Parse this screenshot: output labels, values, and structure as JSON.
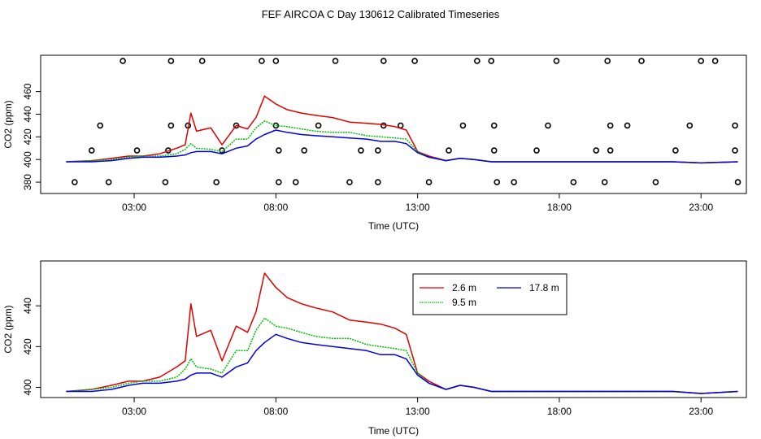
{
  "figure": {
    "title": "FEF AIRCOA C  Day 130612  Calibrated Timeseries"
  },
  "colors": {
    "s26": "#e00000",
    "s95": "#00c000",
    "s178": "#0000e0",
    "flags": "#000000"
  },
  "chart_data": [
    {
      "type": "line",
      "panel": "top",
      "xlabel": "Time (UTC)",
      "ylabel": "CO2 (ppm)",
      "xlim": [
        -0.3,
        24.6
      ],
      "ylim": [
        370,
        492
      ],
      "xticks": [
        3,
        8,
        13,
        18,
        23
      ],
      "xtick_labels": [
        "03:00",
        "08:00",
        "13:00",
        "18:00",
        "23:00"
      ],
      "yticks": [
        380,
        400,
        420,
        440,
        460
      ],
      "ytick_labels": [
        "380",
        "400",
        "420",
        "440",
        "460"
      ],
      "grid": false,
      "series": [
        {
          "name": "2.6 m",
          "color": "#e00000",
          "x": [
            0.6,
            1.5,
            2.2,
            2.8,
            3.3,
            3.9,
            4.5,
            4.8,
            5.0,
            5.2,
            5.7,
            6.1,
            6.6,
            7.0,
            7.3,
            7.6,
            8.0,
            8.4,
            8.9,
            9.4,
            10.0,
            10.6,
            11.2,
            11.7,
            12.2,
            12.6,
            13.0,
            13.4,
            14.0,
            14.5,
            15.0,
            15.6,
            16.5,
            18.0,
            20.0,
            22.0,
            23.0,
            24.3
          ],
          "y": [
            398,
            399,
            401,
            403,
            403,
            405,
            410,
            413,
            441,
            425,
            428,
            413,
            430,
            427,
            437,
            456,
            449,
            444,
            441,
            439,
            437,
            433,
            432,
            431,
            429,
            426,
            407,
            403,
            399,
            401,
            400,
            398,
            398,
            398,
            398,
            398,
            397,
            398
          ]
        },
        {
          "name": "9.5 m",
          "color": "#00c000",
          "x": [
            0.6,
            1.5,
            2.2,
            2.8,
            3.3,
            3.9,
            4.5,
            4.8,
            5.0,
            5.2,
            5.7,
            6.1,
            6.6,
            7.0,
            7.3,
            7.6,
            8.0,
            8.4,
            8.9,
            9.4,
            10.0,
            10.6,
            11.2,
            11.7,
            12.2,
            12.6,
            13.0,
            13.4,
            14.0,
            14.5,
            15.0,
            15.6,
            16.5,
            18.0,
            20.0,
            22.0,
            23.0,
            24.3
          ],
          "y": [
            398,
            399,
            400,
            402,
            403,
            403,
            405,
            409,
            414,
            410,
            409,
            407,
            418,
            418,
            428,
            434,
            430,
            429,
            427,
            425,
            424,
            424,
            421,
            420,
            419,
            418,
            407,
            402,
            399,
            401,
            400,
            398,
            398,
            398,
            398,
            398,
            397,
            398
          ]
        },
        {
          "name": "17.8 m",
          "color": "#0000e0",
          "x": [
            0.6,
            1.5,
            2.2,
            2.8,
            3.3,
            3.9,
            4.5,
            4.8,
            5.0,
            5.2,
            5.7,
            6.1,
            6.6,
            7.0,
            7.3,
            7.6,
            8.0,
            8.4,
            8.9,
            9.4,
            10.0,
            10.6,
            11.2,
            11.7,
            12.2,
            12.6,
            13.0,
            13.4,
            14.0,
            14.5,
            15.0,
            15.6,
            16.5,
            18.0,
            20.0,
            22.0,
            23.0,
            24.3
          ],
          "y": [
            398,
            398,
            399,
            401,
            402,
            402,
            403,
            404,
            406,
            407,
            407,
            405,
            410,
            412,
            418,
            422,
            426,
            424,
            422,
            421,
            420,
            419,
            418,
            416,
            416,
            414,
            406,
            402,
            399,
            401,
            400,
            398,
            398,
            398,
            398,
            398,
            397,
            398
          ]
        }
      ],
      "flag_markers": {
        "symbol": "open circle",
        "x": [
          2.6,
          4.3,
          5.4,
          7.5,
          8.0,
          10.1,
          11.8,
          12.9,
          15.1,
          15.6,
          17.9,
          19.7,
          20.9,
          23.0,
          23.5,
          1.5,
          3.1,
          4.2,
          6.1,
          8.1,
          9.0,
          11.0,
          11.6,
          14.1,
          15.7,
          17.2,
          19.3,
          19.8,
          22.1,
          24.2,
          1.8,
          4.3,
          4.9,
          6.6,
          8.0,
          9.5,
          11.8,
          12.4,
          14.6,
          15.7,
          17.6,
          19.8,
          20.4,
          22.6,
          24.2,
          0.9,
          2.1,
          4.1,
          5.9,
          8.1,
          8.7,
          10.6,
          11.6,
          13.4,
          15.8,
          16.4,
          18.5,
          19.6,
          21.4,
          24.3
        ],
        "y": [
          487,
          487,
          487,
          487,
          487,
          487,
          487,
          487,
          487,
          487,
          487,
          487,
          487,
          487,
          487,
          408,
          408,
          408,
          408,
          408,
          408,
          408,
          408,
          408,
          408,
          408,
          408,
          408,
          408,
          408,
          430,
          430,
          430,
          430,
          430,
          430,
          430,
          430,
          430,
          430,
          430,
          430,
          430,
          430,
          430,
          380,
          380,
          380,
          380,
          380,
          380,
          380,
          380,
          380,
          380,
          380,
          380,
          380,
          380,
          380
        ]
      }
    },
    {
      "type": "line",
      "panel": "bottom",
      "xlabel": "Time (UTC)",
      "ylabel": "CO2 (ppm)",
      "xlim": [
        -0.3,
        24.6
      ],
      "ylim": [
        395,
        462
      ],
      "xticks": [
        3,
        8,
        13,
        18,
        23
      ],
      "xtick_labels": [
        "03:00",
        "08:00",
        "13:00",
        "18:00",
        "23:00"
      ],
      "yticks": [
        400,
        420,
        440
      ],
      "ytick_labels": [
        "400",
        "420",
        "440"
      ],
      "grid": false,
      "legend": {
        "placement": "top-center",
        "entries": [
          "2.6 m",
          "9.5 m",
          "17.8 m"
        ]
      },
      "series": [
        {
          "name": "2.6 m",
          "color": "#e00000",
          "x": [
            0.6,
            1.5,
            2.2,
            2.8,
            3.3,
            3.9,
            4.5,
            4.8,
            5.0,
            5.2,
            5.7,
            6.1,
            6.6,
            7.0,
            7.3,
            7.6,
            8.0,
            8.4,
            8.9,
            9.4,
            10.0,
            10.6,
            11.2,
            11.7,
            12.2,
            12.6,
            13.0,
            13.4,
            14.0,
            14.5,
            15.0,
            15.6,
            16.5,
            18.0,
            20.0,
            22.0,
            23.0,
            24.3
          ],
          "y": [
            398,
            399,
            401,
            403,
            403,
            405,
            410,
            413,
            441,
            425,
            428,
            413,
            430,
            427,
            437,
            456,
            449,
            444,
            441,
            439,
            437,
            433,
            432,
            431,
            429,
            426,
            407,
            403,
            399,
            401,
            400,
            398,
            398,
            398,
            398,
            398,
            397,
            398
          ]
        },
        {
          "name": "9.5 m",
          "color": "#00c000",
          "x": [
            0.6,
            1.5,
            2.2,
            2.8,
            3.3,
            3.9,
            4.5,
            4.8,
            5.0,
            5.2,
            5.7,
            6.1,
            6.6,
            7.0,
            7.3,
            7.6,
            8.0,
            8.4,
            8.9,
            9.4,
            10.0,
            10.6,
            11.2,
            11.7,
            12.2,
            12.6,
            13.0,
            13.4,
            14.0,
            14.5,
            15.0,
            15.6,
            16.5,
            18.0,
            20.0,
            22.0,
            23.0,
            24.3
          ],
          "y": [
            398,
            399,
            400,
            402,
            403,
            403,
            405,
            409,
            414,
            410,
            409,
            407,
            418,
            418,
            428,
            434,
            430,
            429,
            427,
            425,
            424,
            424,
            421,
            420,
            419,
            418,
            407,
            402,
            399,
            401,
            400,
            398,
            398,
            398,
            398,
            398,
            397,
            398
          ]
        },
        {
          "name": "17.8 m",
          "color": "#0000e0",
          "x": [
            0.6,
            1.5,
            2.2,
            2.8,
            3.3,
            3.9,
            4.5,
            4.8,
            5.0,
            5.2,
            5.7,
            6.1,
            6.6,
            7.0,
            7.3,
            7.6,
            8.0,
            8.4,
            8.9,
            9.4,
            10.0,
            10.6,
            11.2,
            11.7,
            12.2,
            12.6,
            13.0,
            13.4,
            14.0,
            14.5,
            15.0,
            15.6,
            16.5,
            18.0,
            20.0,
            22.0,
            23.0,
            24.3
          ],
          "y": [
            398,
            398,
            399,
            401,
            402,
            402,
            403,
            404,
            406,
            407,
            407,
            405,
            410,
            412,
            418,
            422,
            426,
            424,
            422,
            421,
            420,
            419,
            418,
            416,
            416,
            414,
            406,
            402,
            399,
            401,
            400,
            398,
            398,
            398,
            398,
            398,
            397,
            398
          ]
        }
      ]
    }
  ]
}
